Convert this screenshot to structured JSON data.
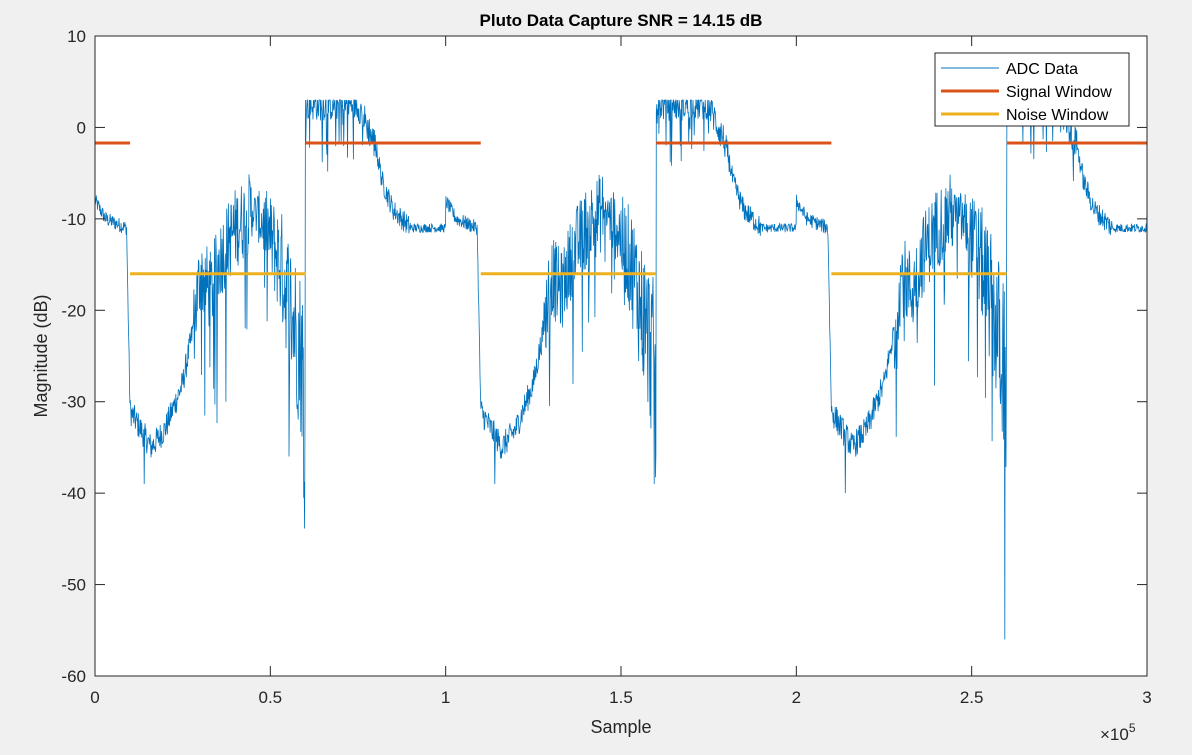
{
  "chart_data": {
    "type": "line",
    "title": "Pluto Data Capture SNR = 14.15 dB",
    "xlabel": "Sample",
    "ylabel": "Magnitude (dB)",
    "x_exponent_label": "×10",
    "x_exponent_power": "5",
    "xlim": [
      0,
      300000
    ],
    "ylim": [
      -60,
      10
    ],
    "x_ticks": [
      0,
      50000,
      100000,
      150000,
      200000,
      250000,
      300000
    ],
    "x_tick_labels": [
      "0",
      "0.5",
      "1",
      "1.5",
      "2",
      "2.5",
      "3"
    ],
    "y_ticks": [
      -60,
      -50,
      -40,
      -30,
      -20,
      -10,
      0,
      10
    ],
    "y_tick_labels": [
      "-60",
      "-50",
      "-40",
      "-30",
      "-20",
      "-10",
      "0",
      "10"
    ],
    "grid": false,
    "legend_position": "top-right",
    "colors": {
      "adc": "#0072BD",
      "signal": "#D95319",
      "noise": "#EDB120",
      "axes_bg": "#ffffff",
      "figure_bg": "#f0f0f0",
      "axis_line": "#262626"
    },
    "series": [
      {
        "name": "ADC Data",
        "style": "thin-line",
        "period": 100000,
        "approx_profile": [
          [
            0,
            -8
          ],
          [
            3000,
            -10
          ],
          [
            9000,
            -11
          ],
          [
            10000,
            -31
          ],
          [
            13000,
            -33
          ],
          [
            16000,
            -35
          ],
          [
            20000,
            -33
          ],
          [
            25000,
            -28
          ],
          [
            28000,
            -22
          ],
          [
            30000,
            -16
          ],
          [
            33000,
            -18
          ],
          [
            36000,
            -14
          ],
          [
            40000,
            -11
          ],
          [
            45000,
            -9
          ],
          [
            49000,
            -11
          ],
          [
            53000,
            -15
          ],
          [
            56000,
            -20
          ],
          [
            59000,
            -25
          ],
          [
            60000,
            -31
          ],
          [
            60000,
            2.5
          ],
          [
            75000,
            2.5
          ],
          [
            80000,
            -2
          ],
          [
            82000,
            -6
          ],
          [
            85000,
            -9
          ],
          [
            90000,
            -11
          ],
          [
            100000,
            -11
          ]
        ],
        "notable_minima": [
          {
            "x": 14000,
            "y": -39
          },
          {
            "x": 59500,
            "y": -40.5
          },
          {
            "x": 114000,
            "y": -39
          },
          {
            "x": 159500,
            "y": -39
          },
          {
            "x": 214000,
            "y": -40
          },
          {
            "x": 259500,
            "y": -56
          }
        ]
      },
      {
        "name": "Signal Window",
        "style": "thick-line",
        "value": -1.7,
        "segments": [
          [
            0,
            10000
          ],
          [
            60000,
            110000
          ],
          [
            160000,
            210000
          ],
          [
            260000,
            300000
          ]
        ]
      },
      {
        "name": "Noise Window",
        "style": "thick-line",
        "value": -16,
        "segments": [
          [
            10000,
            60000
          ],
          [
            110000,
            160000
          ],
          [
            210000,
            260000
          ]
        ]
      }
    ]
  }
}
